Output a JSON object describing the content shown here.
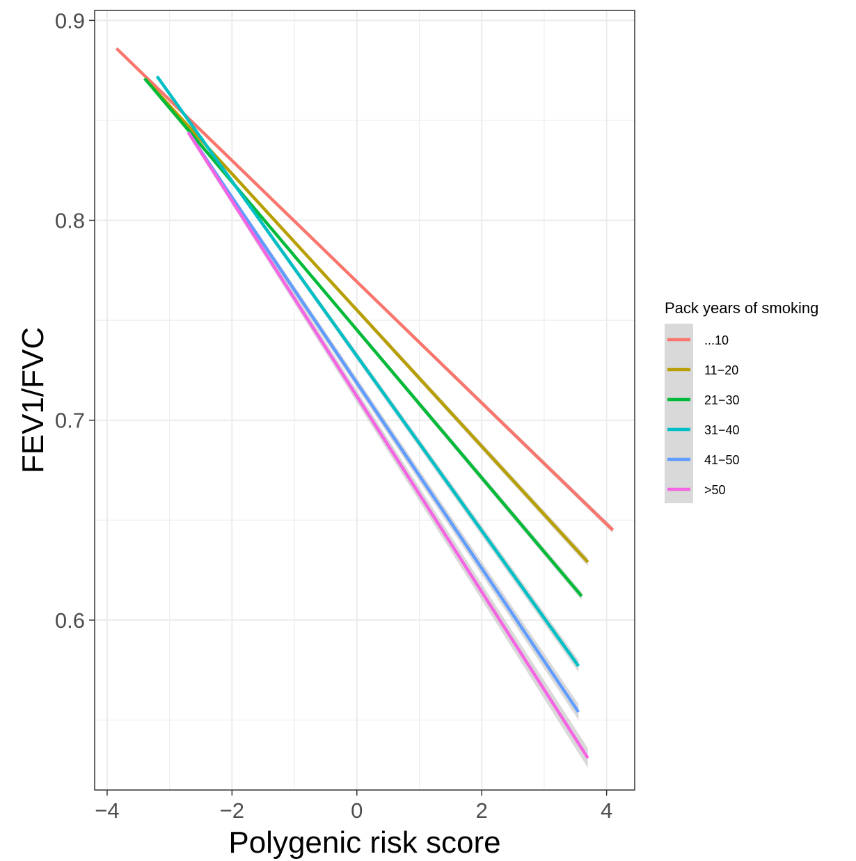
{
  "chart_data": {
    "type": "line",
    "title": "",
    "xlabel": "Polygenic risk score",
    "ylabel": "FEV1/FVC",
    "xlim": [
      -4.2,
      4.45
    ],
    "ylim": [
      0.515,
      0.905
    ],
    "x_ticks": [
      -4,
      -2,
      0,
      2,
      4
    ],
    "x_tick_labels": [
      "−4",
      "−2",
      "0",
      "2",
      "4"
    ],
    "y_ticks": [
      0.6,
      0.7,
      0.8,
      0.9
    ],
    "y_tick_labels": [
      "0.6",
      "0.7",
      "0.8",
      "0.9"
    ],
    "grid": true,
    "legend": {
      "title": "Pack years of smoking",
      "position": "right"
    },
    "series": [
      {
        "name": "...10",
        "color": "#F8766D",
        "x": [
          -3.85,
          4.1
        ],
        "y": [
          0.886,
          0.645
        ],
        "ci_halfwidth": 0.0015
      },
      {
        "name": "11−20",
        "color": "#B79F00",
        "x": [
          -3.4,
          3.7
        ],
        "y": [
          0.871,
          0.629
        ],
        "ci_halfwidth": 0.002
      },
      {
        "name": "21−30",
        "color": "#00BA38",
        "x": [
          -3.4,
          3.6
        ],
        "y": [
          0.871,
          0.612
        ],
        "ci_halfwidth": 0.002
      },
      {
        "name": "31−40",
        "color": "#00BFC4",
        "x": [
          -3.2,
          3.55
        ],
        "y": [
          0.872,
          0.577
        ],
        "ci_halfwidth": 0.003
      },
      {
        "name": "41−50",
        "color": "#619CFF",
        "x": [
          -2.7,
          3.55
        ],
        "y": [
          0.844,
          0.554
        ],
        "ci_halfwidth": 0.004
      },
      {
        "name": ">50",
        "color": "#F564E3",
        "x": [
          -2.7,
          3.7
        ],
        "y": [
          0.844,
          0.531
        ],
        "ci_halfwidth": 0.005
      }
    ]
  }
}
